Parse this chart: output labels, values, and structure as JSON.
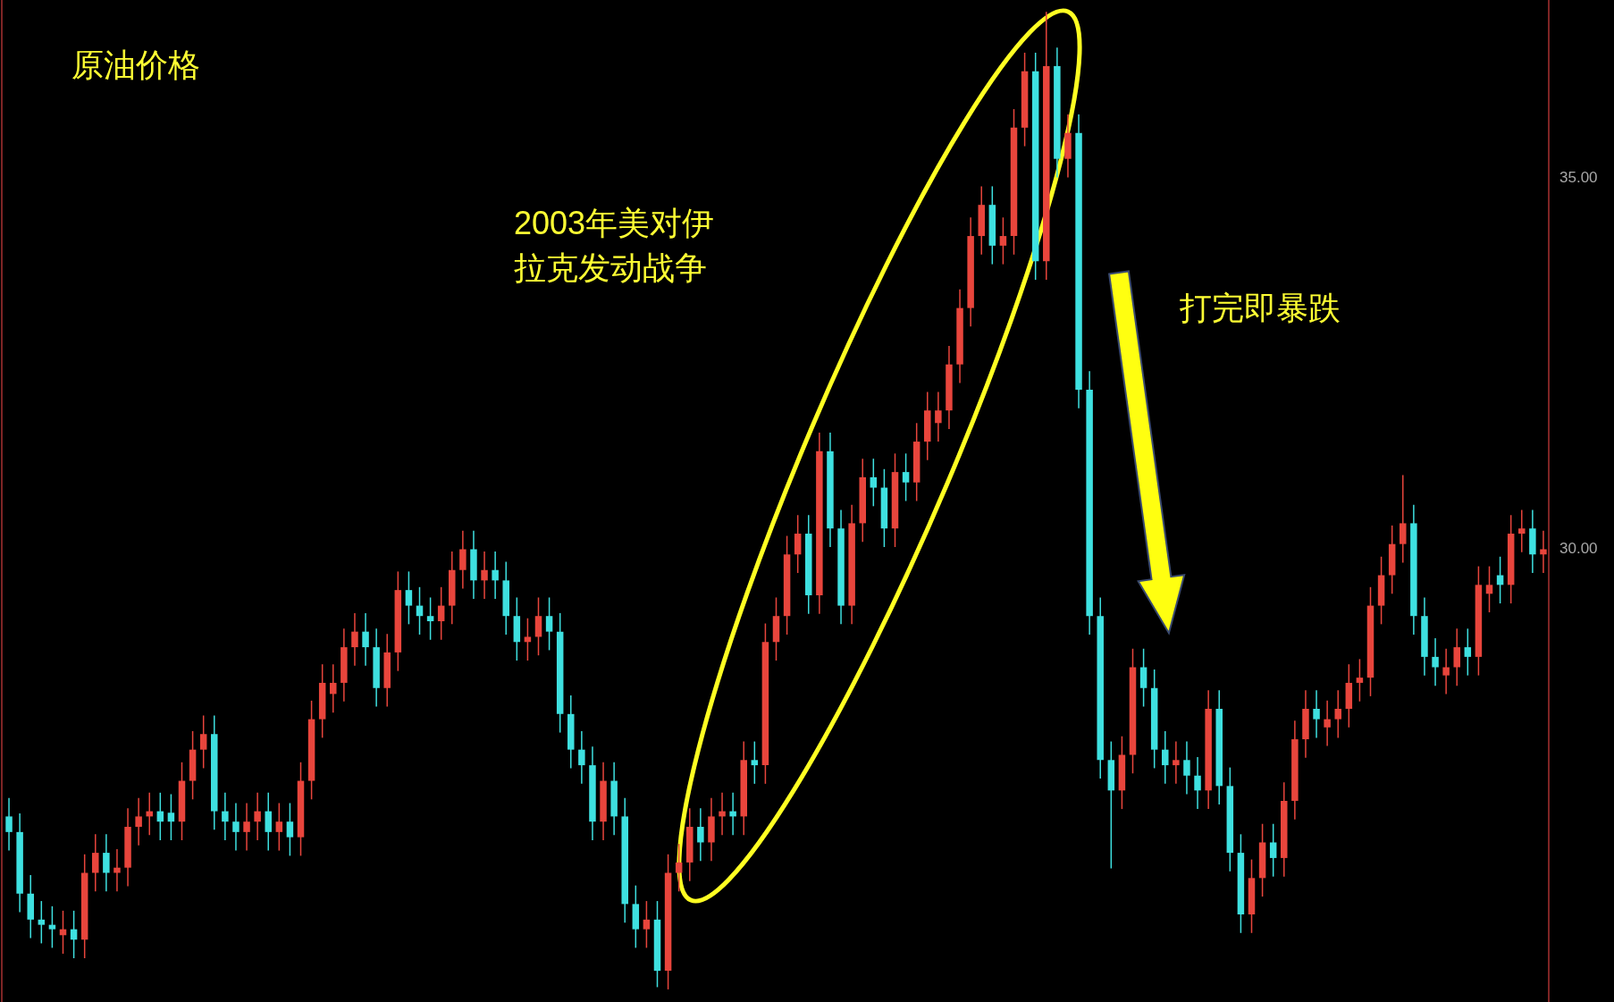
{
  "chart_data": {
    "type": "candlestick",
    "annotations": [
      "原油价格",
      "2003年美对伊拉克发动战争",
      "打完即暴跌"
    ],
    "categories": [
      null,
      null,
      null,
      null,
      null,
      null,
      null,
      null,
      null,
      null,
      null,
      null,
      null,
      null,
      null,
      null,
      null,
      null,
      null,
      null,
      null,
      null,
      null,
      null,
      null,
      null,
      null,
      null,
      null,
      null,
      null,
      null,
      null,
      null,
      null,
      null,
      null,
      null,
      null,
      null,
      null,
      null,
      null,
      null,
      null,
      null,
      null,
      null,
      null,
      null,
      null,
      null,
      null,
      null,
      null,
      null,
      null,
      null,
      null,
      null,
      null,
      null,
      null,
      null,
      null,
      null,
      null,
      null,
      null,
      null,
      null,
      null,
      null,
      null,
      null,
      null,
      null,
      null,
      null,
      null,
      null,
      null,
      null,
      null,
      null,
      null,
      null,
      null,
      null,
      null,
      null,
      null,
      null,
      null,
      null,
      null,
      null,
      null,
      null,
      null,
      null,
      null,
      null,
      null,
      null,
      null,
      null,
      null,
      null,
      null,
      null,
      null,
      null,
      null,
      null,
      null,
      null,
      null,
      null,
      null,
      null,
      null,
      null,
      null,
      null,
      null,
      null,
      null,
      null,
      null,
      null,
      null,
      null,
      null,
      null,
      null,
      null,
      null,
      null,
      null,
      null,
      null,
      null
    ],
    "ohlc": [
      [
        26.4,
        26.65,
        25.94,
        26.19
      ],
      [
        26.19,
        26.44,
        25.11,
        25.36
      ],
      [
        25.36,
        25.61,
        24.76,
        25.01
      ],
      [
        25.01,
        25.26,
        24.69,
        24.94
      ],
      [
        24.94,
        25.19,
        24.63,
        24.88
      ],
      [
        24.8,
        25.13,
        24.55,
        24.88
      ],
      [
        24.88,
        25.13,
        24.49,
        24.74
      ],
      [
        24.74,
        25.89,
        24.49,
        25.64
      ],
      [
        25.64,
        26.16,
        25.39,
        25.91
      ],
      [
        25.91,
        26.16,
        25.39,
        25.64
      ],
      [
        25.64,
        25.96,
        25.39,
        25.71
      ],
      [
        25.71,
        26.51,
        25.46,
        26.26
      ],
      [
        26.26,
        26.65,
        26.01,
        26.4
      ],
      [
        26.4,
        26.72,
        26.15,
        26.47
      ],
      [
        26.47,
        26.72,
        26.08,
        26.33
      ],
      [
        26.45,
        26.7,
        26.08,
        26.33
      ],
      [
        26.33,
        27.13,
        26.08,
        26.88
      ],
      [
        26.88,
        27.55,
        26.63,
        27.3
      ],
      [
        27.3,
        27.76,
        27.05,
        27.51
      ],
      [
        27.51,
        27.76,
        26.22,
        26.47
      ],
      [
        26.47,
        26.72,
        26.08,
        26.33
      ],
      [
        26.33,
        26.58,
        25.94,
        26.19
      ],
      [
        26.19,
        26.58,
        25.94,
        26.33
      ],
      [
        26.33,
        26.72,
        26.08,
        26.47
      ],
      [
        26.47,
        26.72,
        25.94,
        26.19
      ],
      [
        26.19,
        26.58,
        25.94,
        26.33
      ],
      [
        26.33,
        26.58,
        25.87,
        26.12
      ],
      [
        26.12,
        27.13,
        25.87,
        26.88
      ],
      [
        26.88,
        27.96,
        26.63,
        27.71
      ],
      [
        27.71,
        28.45,
        27.46,
        28.2
      ],
      [
        28.05,
        28.45,
        27.8,
        28.2
      ],
      [
        28.2,
        28.93,
        27.95,
        28.68
      ],
      [
        28.68,
        29.14,
        28.43,
        28.89
      ],
      [
        28.89,
        29.14,
        28.43,
        28.68
      ],
      [
        28.68,
        28.93,
        27.88,
        28.13
      ],
      [
        28.13,
        28.86,
        27.88,
        28.61
      ],
      [
        28.61,
        29.7,
        28.36,
        29.45
      ],
      [
        29.45,
        29.7,
        28.99,
        29.24
      ],
      [
        29.24,
        29.49,
        28.85,
        29.1
      ],
      [
        29.1,
        29.35,
        28.78,
        29.03
      ],
      [
        29.03,
        29.49,
        28.78,
        29.24
      ],
      [
        29.24,
        29.97,
        28.99,
        29.72
      ],
      [
        29.72,
        30.25,
        29.47,
        30
      ],
      [
        30,
        30.25,
        29.33,
        29.58
      ],
      [
        29.58,
        29.97,
        29.33,
        29.72
      ],
      [
        29.72,
        29.97,
        29.33,
        29.58
      ],
      [
        29.58,
        29.83,
        28.85,
        29.1
      ],
      [
        29.1,
        29.35,
        28.5,
        28.75
      ],
      [
        28.75,
        29.07,
        28.5,
        28.82
      ],
      [
        28.82,
        29.35,
        28.57,
        29.1
      ],
      [
        29.1,
        29.35,
        28.64,
        28.89
      ],
      [
        28.89,
        29.14,
        27.53,
        27.78
      ],
      [
        27.78,
        28.03,
        27.05,
        27.3
      ],
      [
        27.3,
        27.55,
        26.84,
        27.09
      ],
      [
        27.09,
        27.34,
        26.08,
        26.33
      ],
      [
        26.33,
        27.13,
        26.08,
        26.88
      ],
      [
        26.88,
        27.13,
        26.15,
        26.4
      ],
      [
        26.4,
        26.65,
        24.97,
        25.22
      ],
      [
        25.22,
        25.47,
        24.63,
        24.88
      ],
      [
        24.88,
        25.26,
        24.63,
        25.01
      ],
      [
        25.01,
        25.26,
        24.1,
        24.32
      ],
      [
        24.32,
        25.89,
        24.07,
        25.64
      ],
      [
        25.64,
        26.03,
        25.39,
        25.78
      ],
      [
        25.78,
        26.51,
        25.53,
        26.26
      ],
      [
        26.26,
        26.51,
        25.8,
        26.05
      ],
      [
        26.05,
        26.65,
        25.8,
        26.4
      ],
      [
        26.4,
        26.72,
        26.15,
        26.47
      ],
      [
        26.47,
        26.72,
        26.15,
        26.4
      ],
      [
        26.4,
        27.41,
        26.15,
        27.16
      ],
      [
        27.16,
        27.41,
        26.84,
        27.09
      ],
      [
        27.09,
        29,
        26.84,
        28.75
      ],
      [
        28.75,
        29.35,
        28.5,
        29.1
      ],
      [
        29.1,
        30.18,
        28.85,
        29.93
      ],
      [
        29.93,
        30.46,
        29.68,
        30.21
      ],
      [
        30.21,
        30.46,
        29.13,
        29.38
      ],
      [
        29.38,
        31.57,
        29.13,
        31.32
      ],
      [
        31.32,
        31.57,
        30.03,
        30.28
      ],
      [
        30.28,
        30.53,
        28.99,
        29.24
      ],
      [
        29.24,
        30.6,
        28.99,
        30.35
      ],
      [
        30.35,
        31.22,
        30.1,
        30.97
      ],
      [
        30.97,
        31.22,
        30.58,
        30.83
      ],
      [
        30.83,
        31.08,
        30.03,
        30.28
      ],
      [
        30.28,
        31.29,
        30.03,
        31.04
      ],
      [
        31.04,
        31.29,
        30.65,
        30.9
      ],
      [
        30.9,
        31.7,
        30.65,
        31.45
      ],
      [
        31.45,
        32.12,
        31.2,
        31.87
      ],
      [
        31.7,
        32.12,
        31.45,
        31.87
      ],
      [
        31.87,
        32.74,
        31.62,
        32.49
      ],
      [
        32.49,
        33.5,
        32.24,
        33.25
      ],
      [
        33.25,
        34.47,
        33,
        34.22
      ],
      [
        34.22,
        34.89,
        33.97,
        34.64
      ],
      [
        34.64,
        34.89,
        33.84,
        34.09
      ],
      [
        34.09,
        34.47,
        33.84,
        34.22
      ],
      [
        34.22,
        35.93,
        33.97,
        35.68
      ],
      [
        35.68,
        36.69,
        35.43,
        36.44
      ],
      [
        36.44,
        36.69,
        33.63,
        33.88
      ],
      [
        33.88,
        37.24,
        33.63,
        36.51
      ],
      [
        36.51,
        36.76,
        35.01,
        35.26
      ],
      [
        35.26,
        35.86,
        35.01,
        35.61
      ],
      [
        35.61,
        35.86,
        31.9,
        32.15
      ],
      [
        32.15,
        32.4,
        28.85,
        29.1
      ],
      [
        29.1,
        29.35,
        26.91,
        27.16
      ],
      [
        27.16,
        27.41,
        25.7,
        26.75
      ],
      [
        26.75,
        27.48,
        26.5,
        27.23
      ],
      [
        27.23,
        28.66,
        26.98,
        28.41
      ],
      [
        28.41,
        28.66,
        27.88,
        28.13
      ],
      [
        28.13,
        28.38,
        27.05,
        27.3
      ],
      [
        27.3,
        27.55,
        26.84,
        27.09
      ],
      [
        27.09,
        27.41,
        26.84,
        27.16
      ],
      [
        27.16,
        27.41,
        26.7,
        26.95
      ],
      [
        26.95,
        27.2,
        26.5,
        26.75
      ],
      [
        26.75,
        28.1,
        26.5,
        27.85
      ],
      [
        27.85,
        28.1,
        26.56,
        26.81
      ],
      [
        26.81,
        27.06,
        25.66,
        25.91
      ],
      [
        25.91,
        26.16,
        24.83,
        25.08
      ],
      [
        25.08,
        25.82,
        24.83,
        25.57
      ],
      [
        25.57,
        26.3,
        25.32,
        26.05
      ],
      [
        26.05,
        26.3,
        25.59,
        25.84
      ],
      [
        25.84,
        26.86,
        25.59,
        26.61
      ],
      [
        26.61,
        27.69,
        26.36,
        27.44
      ],
      [
        27.44,
        28.1,
        27.19,
        27.85
      ],
      [
        27.85,
        28.1,
        27.46,
        27.71
      ],
      [
        27.6,
        27.96,
        27.35,
        27.71
      ],
      [
        27.71,
        28.1,
        27.46,
        27.85
      ],
      [
        27.85,
        28.45,
        27.6,
        28.2
      ],
      [
        28.2,
        28.52,
        27.95,
        28.27
      ],
      [
        28.27,
        29.49,
        28.02,
        29.24
      ],
      [
        29.24,
        29.9,
        28.99,
        29.65
      ],
      [
        29.65,
        30.32,
        29.4,
        30.07
      ],
      [
        30.07,
        31,
        29.82,
        30.35
      ],
      [
        30.35,
        30.6,
        28.85,
        29.1
      ],
      [
        29.1,
        29.35,
        28.3,
        28.55
      ],
      [
        28.55,
        28.8,
        28.16,
        28.41
      ],
      [
        28.3,
        28.66,
        28.05,
        28.41
      ],
      [
        28.41,
        28.93,
        28.16,
        28.68
      ],
      [
        28.68,
        28.93,
        28.3,
        28.55
      ],
      [
        28.55,
        29.77,
        28.3,
        29.52
      ],
      [
        29.4,
        29.77,
        29.15,
        29.52
      ],
      [
        29.65,
        29.9,
        29.27,
        29.52
      ],
      [
        29.52,
        30.46,
        29.27,
        30.21
      ],
      [
        30.21,
        30.53,
        29.96,
        30.28
      ],
      [
        30.28,
        30.53,
        29.68,
        29.93
      ],
      [
        29.93,
        30.25,
        29.68,
        30
      ]
    ],
    "colors": [
      "#3ee0e0",
      "#3ee0e0",
      "#3ee0e0",
      "#3ee0e0",
      "#3ee0e0",
      "#e8453c",
      "#3ee0e0",
      "#e8453c",
      "#e8453c",
      "#3ee0e0",
      "#e8453c",
      "#e8453c",
      "#e8453c",
      "#e8453c",
      "#3ee0e0",
      "#3ee0e0",
      "#e8453c",
      "#e8453c",
      "#e8453c",
      "#3ee0e0",
      "#3ee0e0",
      "#3ee0e0",
      "#e8453c",
      "#e8453c",
      "#3ee0e0",
      "#e8453c",
      "#3ee0e0",
      "#e8453c",
      "#e8453c",
      "#e8453c",
      "#e8453c",
      "#e8453c",
      "#e8453c",
      "#3ee0e0",
      "#3ee0e0",
      "#e8453c",
      "#e8453c",
      "#3ee0e0",
      "#3ee0e0",
      "#3ee0e0",
      "#e8453c",
      "#e8453c",
      "#e8453c",
      "#3ee0e0",
      "#e8453c",
      "#3ee0e0",
      "#3ee0e0",
      "#3ee0e0",
      "#e8453c",
      "#e8453c",
      "#3ee0e0",
      "#3ee0e0",
      "#3ee0e0",
      "#3ee0e0",
      "#3ee0e0",
      "#e8453c",
      "#3ee0e0",
      "#3ee0e0",
      "#3ee0e0",
      "#e8453c",
      "#3ee0e0",
      "#e8453c",
      "#e8453c",
      "#e8453c",
      "#3ee0e0",
      "#e8453c",
      "#e8453c",
      "#3ee0e0",
      "#e8453c",
      "#3ee0e0",
      "#e8453c",
      "#e8453c",
      "#e8453c",
      "#e8453c",
      "#3ee0e0",
      "#e8453c",
      "#3ee0e0",
      "#3ee0e0",
      "#e8453c",
      "#e8453c",
      "#3ee0e0",
      "#3ee0e0",
      "#e8453c",
      "#3ee0e0",
      "#e8453c",
      "#e8453c",
      "#e8453c",
      "#e8453c",
      "#e8453c",
      "#e8453c",
      "#e8453c",
      "#3ee0e0",
      "#e8453c",
      "#e8453c",
      "#e8453c",
      "#3ee0e0",
      "#e8453c",
      "#3ee0e0",
      "#e8453c",
      "#3ee0e0",
      "#3ee0e0",
      "#3ee0e0",
      "#3ee0e0",
      "#e8453c",
      "#e8453c",
      "#3ee0e0",
      "#3ee0e0",
      "#3ee0e0",
      "#e8453c",
      "#3ee0e0",
      "#3ee0e0",
      "#e8453c",
      "#3ee0e0",
      "#3ee0e0",
      "#3ee0e0",
      "#e8453c",
      "#e8453c",
      "#3ee0e0",
      "#e8453c",
      "#e8453c",
      "#e8453c",
      "#3ee0e0",
      "#e8453c",
      "#e8453c",
      "#e8453c",
      "#e8453c",
      "#e8453c",
      "#e8453c",
      "#e8453c",
      "#e8453c",
      "#3ee0e0",
      "#3ee0e0",
      "#3ee0e0",
      "#e8453c",
      "#e8453c",
      "#3ee0e0",
      "#e8453c",
      "#e8453c",
      "#3ee0e0",
      "#e8453c",
      "#e8453c",
      "#3ee0e0",
      "#e8453c"
    ],
    "ylim": [
      23.9,
      37.4
    ],
    "yticks": [
      {
        "value": 30,
        "label": "30.00"
      },
      {
        "value": 35,
        "label": "35.00"
      }
    ],
    "legend": false
  }
}
